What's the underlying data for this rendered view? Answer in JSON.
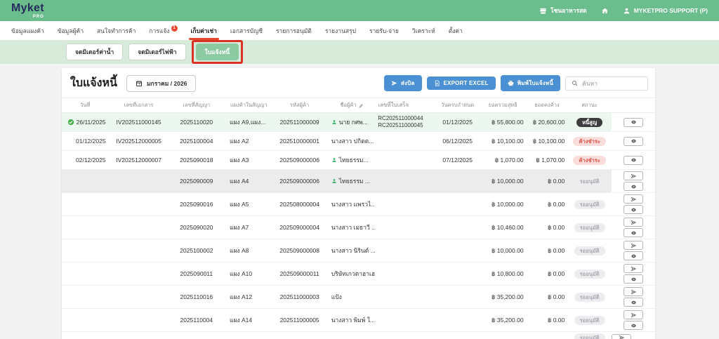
{
  "topbar": {
    "logo": "Myket",
    "logo_sub": "pro",
    "zone_label": "โซนอาหารสด",
    "user_label": "MYKETPRO SUPPORT (P)"
  },
  "nav": {
    "items": [
      {
        "label": "ข้อมูลแผงค้า"
      },
      {
        "label": "ข้อมูลผู้ค้า"
      },
      {
        "label": "สนใจทำการค้า"
      },
      {
        "label": "การแจ้ง",
        "badge": "1"
      },
      {
        "label": "เก็บค่าเช่า",
        "active": true
      },
      {
        "label": "เอกสารบัญชี"
      },
      {
        "label": "รายการอนุมัติ"
      },
      {
        "label": "รายงานสรุป"
      },
      {
        "label": "รายรับ-จ่าย"
      },
      {
        "label": "วิเคราะห์"
      },
      {
        "label": "ตั้งค่า"
      }
    ]
  },
  "subtabs": {
    "items": [
      {
        "label": "จดมิเตอร์ค่าน้ำ"
      },
      {
        "label": "จดมิเตอร์ไฟฟ้า"
      },
      {
        "label": "ใบแจ้งหนี้",
        "active": true,
        "annotated": true
      }
    ]
  },
  "toolbar": {
    "title": "ใบแจ้งหนี้",
    "period": "มกราคม / 2026",
    "send_bill_label": "ส่งบิล",
    "export_label": "EXPORT EXCEL",
    "print_label": "พิมพ์ใบแจ้งหนี้",
    "search_placeholder": "ค้นหา"
  },
  "table": {
    "columns": [
      {
        "label": "วันที่"
      },
      {
        "label": "เลขที่เอกสาร"
      },
      {
        "label": "เลขที่สัญญา"
      },
      {
        "label": "แผงค้าในสัญญา"
      },
      {
        "label": "รหัสผู้ค้า"
      },
      {
        "label": "ชื่อผู้ค้า",
        "edit_icon": true
      },
      {
        "label": "เลขที่ใบเสร็จ"
      },
      {
        "label": "วันครบกำหนด"
      },
      {
        "label": "ยอดรวมสุทธิ"
      },
      {
        "label": "ยอดคงค้าง"
      },
      {
        "label": "สถานะ"
      }
    ],
    "rows": [
      {
        "checked": true,
        "date": "26/11/2025",
        "doc_no": "IV202511000145",
        "contract_no": "2025110020",
        "stall": "แผง A9,แผง...",
        "vendor_code": "202511000009",
        "vendor_name": "นาย กศพ...",
        "vendor_icon": true,
        "receipts": [
          "RC202511000044",
          "RC202511000045"
        ],
        "due_date": "01/12/2025",
        "total": "฿ 55,800.00",
        "outstanding": "฿ 20,600.00",
        "status": {
          "label": "หนี้สูญ",
          "type": "dark"
        },
        "actions": [
          "view"
        ],
        "style": "green"
      },
      {
        "date": "01/12/2025",
        "doc_no": "IV202512000005",
        "contract_no": "2025100004",
        "stall": "แผง A2",
        "vendor_code": "202510000001",
        "vendor_name": "นางสาว ปกิตต...",
        "receipts": [],
        "due_date": "06/12/2025",
        "total": "฿ 10,100.00",
        "outstanding": "฿ 10,100.00",
        "status": {
          "label": "ค้างชำระ",
          "type": "red"
        },
        "actions": [
          "view"
        ]
      },
      {
        "date": "02/12/2025",
        "doc_no": "IV202512000007",
        "contract_no": "2025090018",
        "stall": "แผง A3",
        "vendor_code": "202509000006",
        "vendor_name": "ไทยธรรม...",
        "vendor_icon": true,
        "receipts": [],
        "due_date": "07/12/2025",
        "total": "฿ 1,070.00",
        "outstanding": "฿ 1,070.00",
        "status": {
          "label": "ค้างชำระ",
          "type": "red"
        },
        "actions": [
          "view"
        ]
      },
      {
        "contract_no": "2025090009",
        "stall": "แผง A4",
        "vendor_code": "202509000006",
        "vendor_name": "ไทยธรรม ...",
        "vendor_icon": true,
        "receipts": [],
        "total": "฿ 10,000.00",
        "outstanding": "฿ 0.00",
        "status": {
          "label": "รออนุมัติ",
          "type": "gray"
        },
        "actions": [
          "send",
          "view"
        ],
        "style": "gray"
      },
      {
        "contract_no": "2025090016",
        "stall": "แผง A5",
        "vendor_code": "202508000004",
        "vendor_name": "นางสาว แพรวไ...",
        "receipts": [],
        "total": "฿ 10,000.00",
        "outstanding": "฿ 0.00",
        "status": {
          "label": "รออนุมัติ",
          "type": "gray"
        },
        "actions": [
          "send",
          "view"
        ]
      },
      {
        "contract_no": "2025090020",
        "stall": "แผง A7",
        "vendor_code": "202509000004",
        "vendor_name": "นางสาว เมธาวี ...",
        "receipts": [],
        "total": "฿ 10,460.00",
        "outstanding": "฿ 0.00",
        "status": {
          "label": "รออนุมัติ",
          "type": "gray"
        },
        "actions": [
          "send",
          "view"
        ]
      },
      {
        "contract_no": "2025100002",
        "stall": "แผง A8",
        "vendor_code": "202509000008",
        "vendor_name": "นางสาว นิรินด์ ...",
        "receipts": [],
        "total": "฿ 10,000.00",
        "outstanding": "฿ 0.00",
        "status": {
          "label": "รออนุมัติ",
          "type": "gray"
        },
        "actions": [
          "send",
          "view"
        ]
      },
      {
        "contract_no": "2025090011",
        "stall": "แผง A10",
        "vendor_code": "202509000011",
        "vendor_name": "บริษัทเกวดาฮาเฮ",
        "receipts": [],
        "total": "฿ 10,800.00",
        "outstanding": "฿ 0.00",
        "status": {
          "label": "รออนุมัติ",
          "type": "gray"
        },
        "actions": [
          "send",
          "view"
        ]
      },
      {
        "contract_no": "2025110016",
        "stall": "แผง A12",
        "vendor_code": "202511000003",
        "vendor_name": "แป้ง",
        "receipts": [],
        "total": "฿ 35,200.00",
        "outstanding": "฿ 0.00",
        "status": {
          "label": "รออนุมัติ",
          "type": "gray"
        },
        "actions": [
          "send",
          "view"
        ]
      },
      {
        "contract_no": "2025110004",
        "stall": "แผง A14",
        "vendor_code": "202511000005",
        "vendor_name": "นางสาว พิมพ์ ใ...",
        "receipts": [],
        "total": "฿ 35,200.00",
        "outstanding": "฿ 0.00",
        "status": {
          "label": "รออนุมัติ",
          "type": "gray"
        },
        "actions": [
          "send",
          "view"
        ]
      },
      {
        "partial": true,
        "receipts": [],
        "status": {
          "label": "รออนุมัติ",
          "type": "gray"
        },
        "actions": [
          "send"
        ]
      }
    ]
  },
  "colors": {
    "header_green": "#6cbd8e",
    "tab_bar_green": "#d8ebdb",
    "active_tab_green": "#8ccaa1",
    "primary_blue": "#4a90d2",
    "annotation_red": "#d93226",
    "nav_active_red": "#e2492f",
    "logo_navy": "#252b5c",
    "status_dark": "#3d3d3f",
    "status_red_bg": "#f9ddda",
    "status_red_text": "#e2574b",
    "status_gray_bg": "#ededf0",
    "status_gray_text": "#ababb4",
    "row_highlight_green": "#ecf7ef",
    "row_highlight_gray": "#ececec"
  }
}
